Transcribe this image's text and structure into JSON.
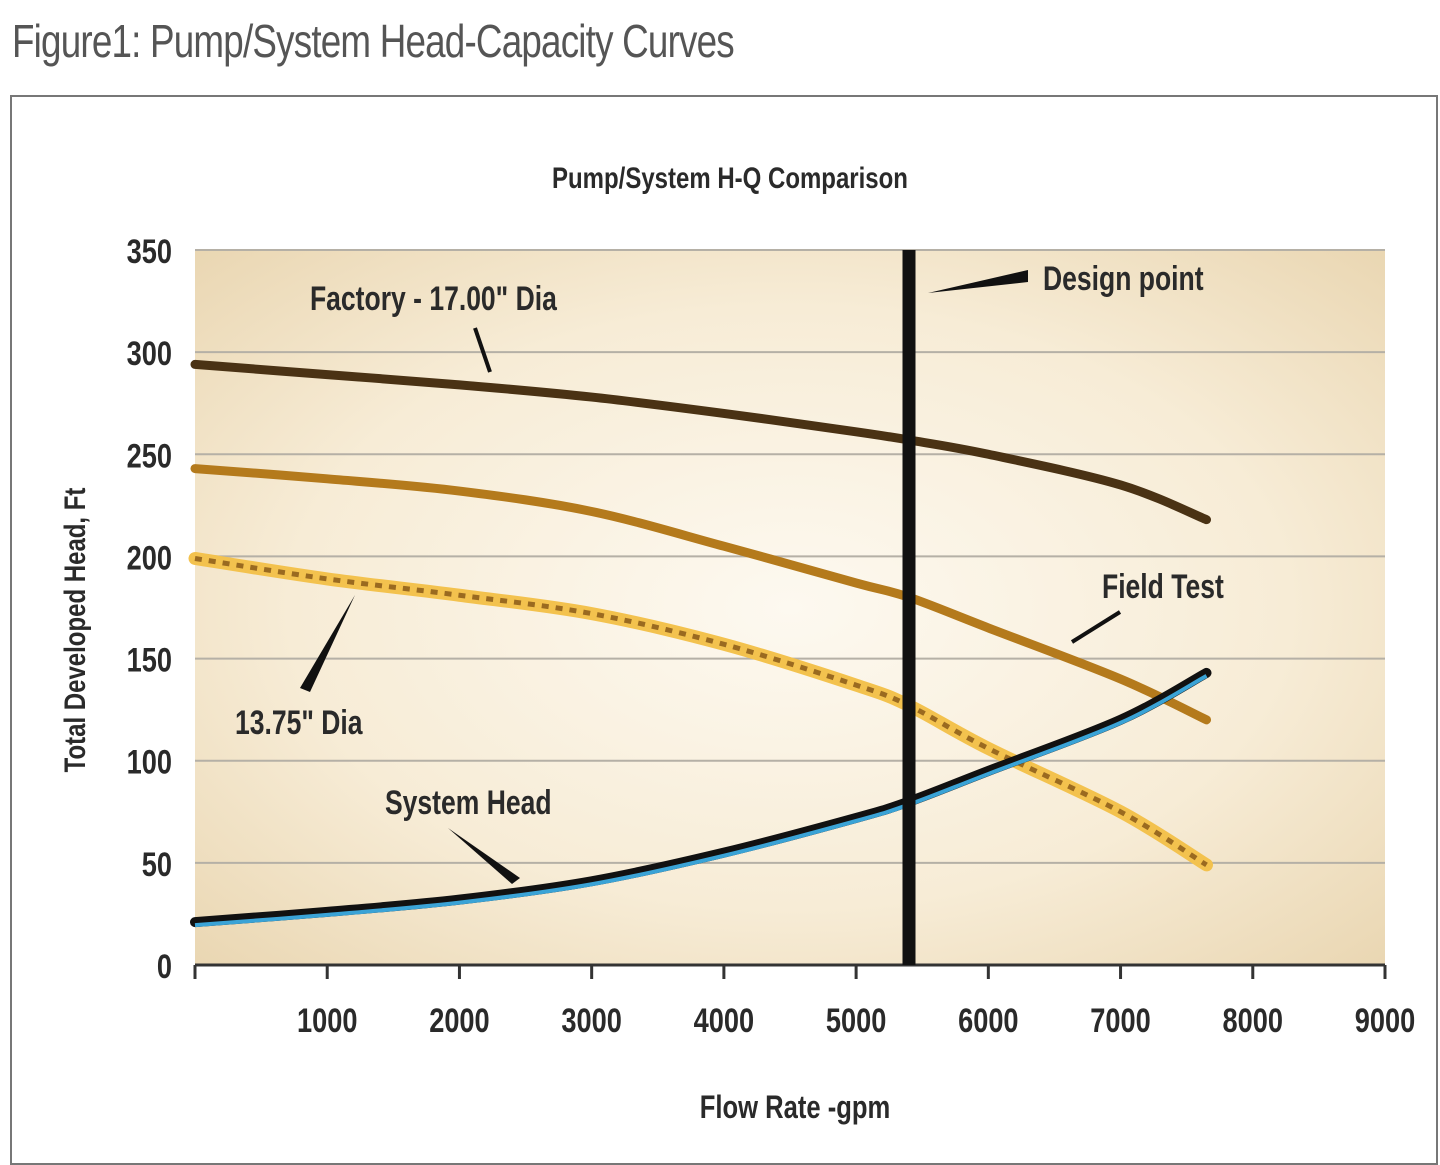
{
  "figure_title": "Figure1: Pump/System Head-Capacity Curves",
  "chart_data": {
    "type": "line",
    "title": "Pump/System H-Q Comparison",
    "xlabel": "Flow Rate -gpm",
    "ylabel": "Total Developed Head, Ft",
    "xlim": [
      0,
      9000
    ],
    "ylim": [
      0,
      350
    ],
    "xticks": [
      "1000",
      "2000",
      "3000",
      "4000",
      "5000",
      "6000",
      "7000",
      "8000",
      "9000"
    ],
    "yticks": [
      "0",
      "50",
      "100",
      "150",
      "200",
      "250",
      "300",
      "350"
    ],
    "grid": "horizontal",
    "series": [
      {
        "name": "Factory - 17.00\" Dia",
        "color": "#4a3214",
        "x": [
          0,
          1000,
          2000,
          3000,
          4000,
          5000,
          5400,
          6000,
          7000,
          7650
        ],
        "y": [
          294,
          289,
          284,
          278,
          270,
          261,
          257,
          250,
          235,
          218
        ]
      },
      {
        "name": "Field Test",
        "color": "#b47a1c",
        "x": [
          0,
          1000,
          2000,
          3000,
          4000,
          5000,
          5400,
          6000,
          7000,
          7650
        ],
        "y": [
          243,
          238,
          232,
          222,
          205,
          187,
          180,
          165,
          140,
          120
        ]
      },
      {
        "name": "13.75\" Dia",
        "color": "#f3c24e",
        "x": [
          0,
          1000,
          2000,
          3000,
          4000,
          5000,
          5400,
          6000,
          7000,
          7650
        ],
        "y": [
          199,
          189,
          181,
          172,
          157,
          137,
          127,
          106,
          75,
          49
        ]
      },
      {
        "name": "System Head",
        "color": "#3aa3d6",
        "x": [
          0,
          1000,
          2000,
          3000,
          4000,
          5000,
          5400,
          6000,
          7000,
          7650
        ],
        "y": [
          21,
          26,
          32,
          41,
          55,
          72,
          80,
          95,
          120,
          143
        ]
      }
    ],
    "annotations": [
      {
        "text": "Design point",
        "x": 5400
      }
    ]
  }
}
